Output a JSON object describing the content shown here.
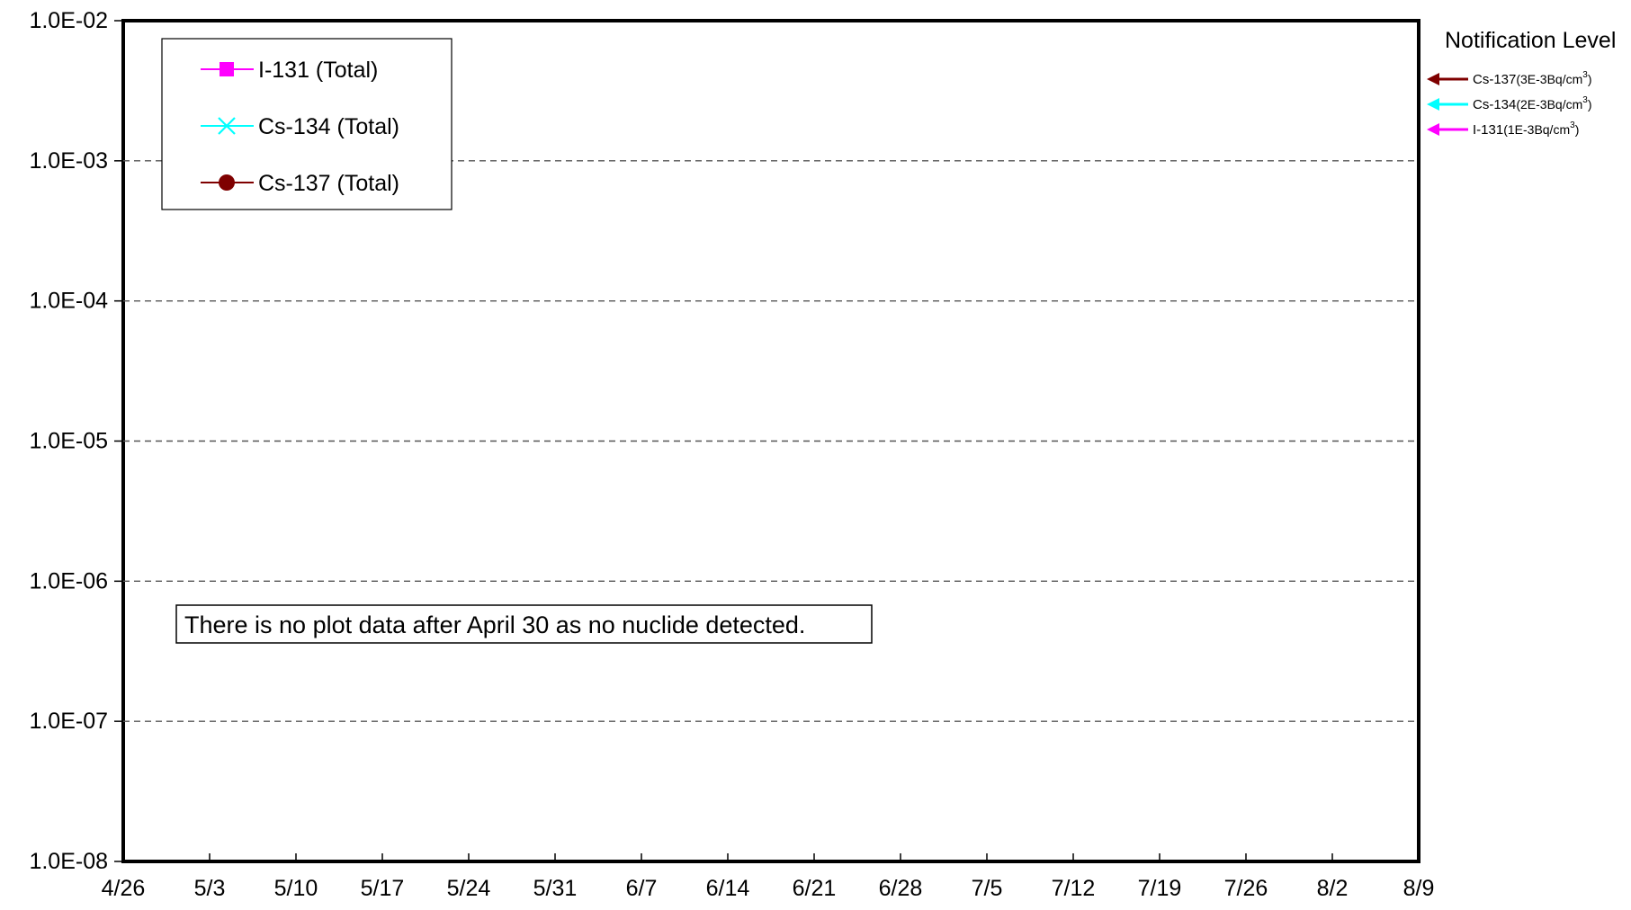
{
  "chart_data": {
    "type": "line",
    "title": "",
    "xlabel": "",
    "ylabel": "",
    "y_scale": "log",
    "ylim": [
      "1.0E-08",
      "1.0E-02"
    ],
    "y_ticks": [
      "1.0E-02",
      "1.0E-03",
      "1.0E-04",
      "1.0E-05",
      "1.0E-06",
      "1.0E-07",
      "1.0E-08"
    ],
    "x_ticks": [
      "4/26",
      "5/3",
      "5/10",
      "5/17",
      "5/24",
      "5/31",
      "6/7",
      "6/14",
      "6/21",
      "6/28",
      "7/5",
      "7/12",
      "7/19",
      "7/26",
      "8/2",
      "8/9"
    ],
    "grid": "horizontal dashed",
    "legend_position": "top-left",
    "series": [
      {
        "name": "I-131 (Total)",
        "color": "#ff00ff",
        "marker": "square",
        "values": []
      },
      {
        "name": "Cs-134 (Total)",
        "color": "#00ffff",
        "marker": "x",
        "values": []
      },
      {
        "name": "Cs-137 (Total)",
        "color": "#7f0000",
        "marker": "circle",
        "values": []
      }
    ],
    "notification": {
      "title": "Notification Level",
      "levels": [
        {
          "nuclide": "Cs-137",
          "value_text": "(3E-3Bq/cm",
          "sup": "3",
          "close": ")",
          "color": "#7f0000"
        },
        {
          "nuclide": "Cs-134",
          "value_text": "(2E-3Bq/cm",
          "sup": "3",
          "close": ")",
          "color": "#00ffff"
        },
        {
          "nuclide": "I-131",
          "value_text": "(1E-3Bq/cm",
          "sup": "3",
          "close": ")",
          "color": "#ff00ff"
        }
      ]
    },
    "note": "There is no plot data after April 30 as no nuclide detected."
  }
}
